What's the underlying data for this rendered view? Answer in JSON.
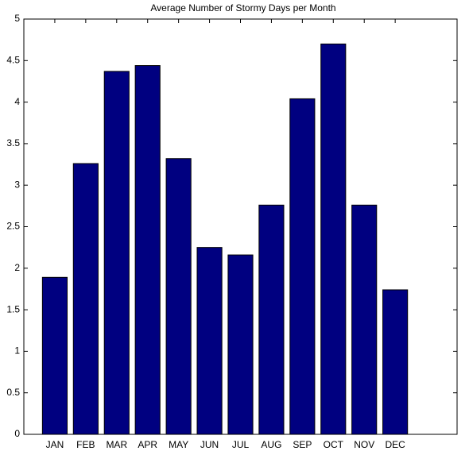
{
  "chart_data": {
    "type": "bar",
    "title": "Average Number of Stormy Days per Month",
    "categories": [
      "JAN",
      "FEB",
      "MAR",
      "APR",
      "MAY",
      "JUN",
      "JUL",
      "AUG",
      "SEP",
      "OCT",
      "NOV",
      "DEC"
    ],
    "values": [
      1.89,
      3.26,
      4.37,
      4.44,
      3.32,
      2.25,
      2.16,
      2.76,
      4.04,
      4.7,
      2.76,
      1.74
    ],
    "color": "#000080",
    "ylim": [
      0,
      5
    ],
    "yticks": [
      0,
      0.5,
      1,
      1.5,
      2,
      2.5,
      3,
      3.5,
      4,
      4.5,
      5
    ],
    "grid": false
  }
}
